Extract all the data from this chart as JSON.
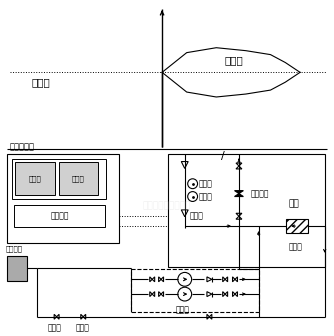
{
  "bg_color": "#ffffff",
  "line_color": "#000000",
  "fig_width": 3.34,
  "fig_height": 3.36,
  "dpi": 100,
  "watermark": "泰机电设备有限公司",
  "labels": {
    "jingya_xian": "静压线",
    "heng_ya_dian": "恒压点",
    "tiaoping_guizhi": "调频控制柜",
    "jie_jie_qi": "调节器",
    "bian_pin_qi": "变频器",
    "kong_zhi_mian_ban": "控制面板",
    "ruan_hua_shui_xiang": "软化水箱",
    "qu_ya_guan": "取压盘",
    "ya_li_biao": "压力表",
    "ping_heng_fa": "平衡阀",
    "xun_huan_shui_beng": "循环水泵",
    "wai_wang": "外网",
    "guo_lv_qi_right": "过滤器",
    "bu_shui_beng": "补水泵",
    "dian_ci_fa": "电磁阀",
    "guo_lv_qi_bottom": "过滤器"
  }
}
